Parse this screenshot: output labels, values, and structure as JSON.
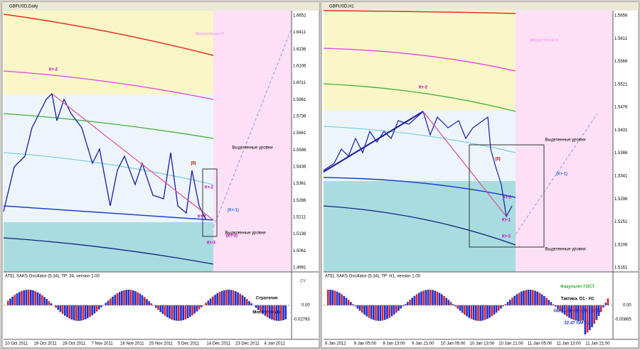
{
  "left": {
    "title": "GBPUSD,Daily",
    "watermark": "Masterforex-V",
    "annotations": [
      "Кт-2",
      "(0)",
      "Кт-2",
      "(Кт-1)",
      "Кт-1",
      "(Кт-3)",
      "Кт-3",
      "Выделенные уровни",
      "Выделенные уровни"
    ],
    "prices": [
      "1.6652",
      "1.6411",
      "1.6236",
      "1.6106",
      "1.6011",
      "1.5861",
      "1.5736",
      "1.5661",
      "1.5586",
      "1.5436",
      "1.5361",
      "1.5286",
      "1.5211",
      "1.5136",
      "1.5061",
      "1.4991"
    ],
    "dates": [
      "10 Oct 2011",
      "19 Oct 2011",
      "28 Oct 2011",
      "7 Nov 2011",
      "16 Nov 2011",
      "25 Nov 2011",
      "5 Dec 2011",
      "14 Dec 2011",
      "23 Dec 2011",
      "4 Jan 2012"
    ],
    "oscillator": {
      "header": "ATEL SAKS Oscillator (5,34), TP: 34, version 1.00",
      "zero": "0.00",
      "min": "-0.02793",
      "corner": "CV"
    },
    "caption": [
      "Стратегия",
      "Monthly-Daily"
    ]
  },
  "right": {
    "title": "GBPUSD,H1",
    "watermark": "Masterforex-V",
    "annotations": [
      "Кт-2",
      "Выделенные уровни",
      "(Кт-1)",
      "(0)",
      "Кт-2",
      "Кт-1",
      "Кт-3",
      "Выделенные уровни"
    ],
    "prices": [
      "1.5656",
      "1.5611",
      "1.5566",
      "1.5521",
      "1.5476",
      "1.5431",
      "1.5386",
      "1.5341",
      "1.5296",
      "1.5251",
      "1.5206",
      "1.5161"
    ],
    "dates": [
      "6 Jan 2012",
      "9 Jan 05:00",
      "9 Jan 13:00",
      "9 Jan 21:00",
      "10 Jan 05:00",
      "10 Jan 13:00",
      "10 Jan 21:00",
      "11 Jan 05:00",
      "11 Jan 13:00",
      "11 Jan 21:00"
    ],
    "oscillator": {
      "header": "ATEL SAKS Oscillator (5,34), TP: H1, version 1.00",
      "zero": "0.00",
      "min": "-0.00865"
    },
    "caption": [
      "Факультет ГОСТ",
      "Тактика. D1 - H1",
      "GBP USD 11-12.01.2012",
      "22:47 GMT+2"
    ]
  }
}
